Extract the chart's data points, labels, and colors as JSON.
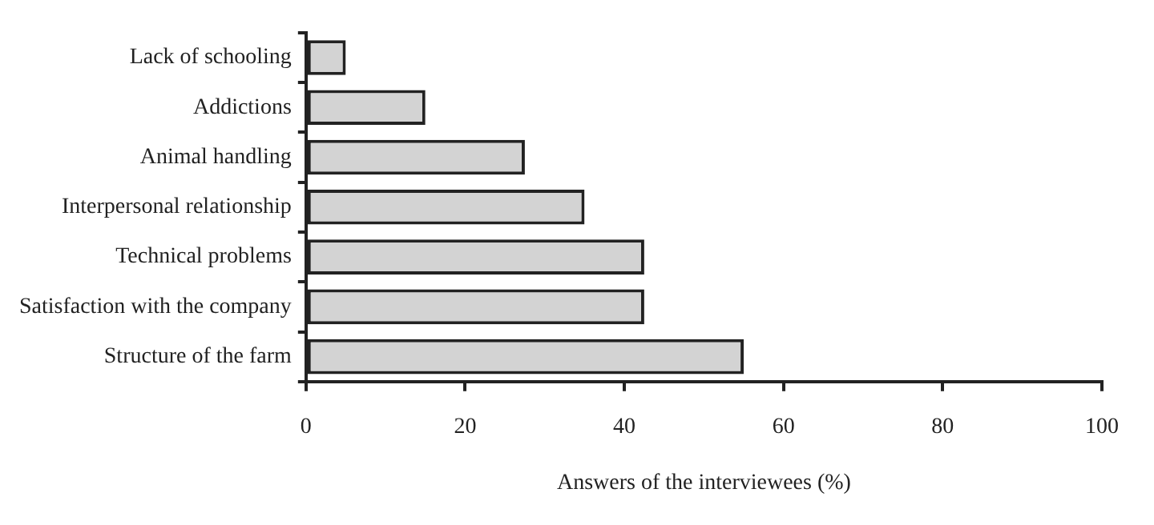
{
  "chart_data": {
    "type": "bar",
    "orientation": "horizontal",
    "xlabel": "Answers of the interviewees (%)",
    "categories": [
      "Lack of schooling",
      "Addictions",
      "Animal handling",
      "Interpersonal relationship",
      "Technical problems",
      "Satisfaction with the company",
      "Structure of the farm"
    ],
    "values": [
      5,
      15,
      27.5,
      35,
      42.5,
      42.5,
      55
    ],
    "color": "#d3d3d3",
    "xlim": [
      0,
      100
    ],
    "xticks": [
      0,
      20,
      40,
      60,
      80,
      100
    ],
    "grid": false,
    "legend": false
  }
}
